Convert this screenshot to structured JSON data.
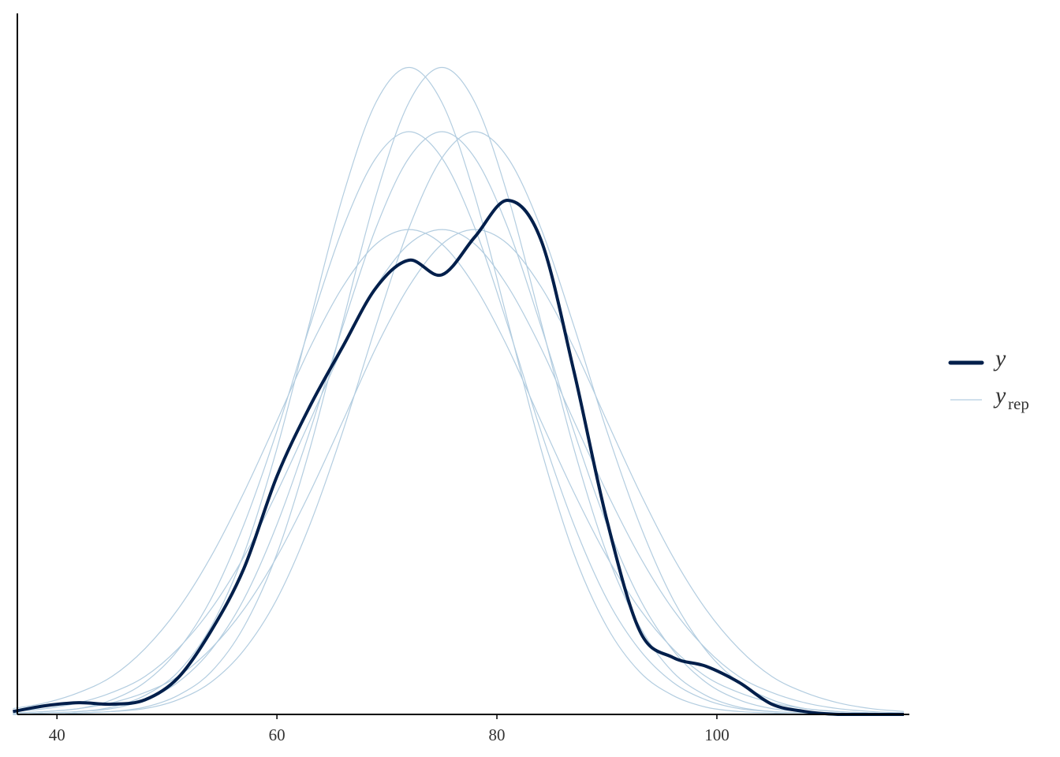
{
  "chart_data": {
    "type": "density-overlay",
    "x": [
      36,
      39,
      42,
      45,
      48,
      51,
      54,
      57,
      60,
      63,
      66,
      69,
      72,
      75,
      78,
      81,
      84,
      87,
      90,
      93,
      96,
      99,
      102,
      105,
      108,
      111,
      114,
      117
    ],
    "xlim": [
      36.4,
      117.5
    ],
    "xticks": [
      40,
      60,
      80,
      100
    ],
    "ylim": [
      0,
      0.048
    ],
    "series": [
      {
        "name": "y",
        "color": "#011f4b",
        "values": [
          0.0002,
          0.0006,
          0.0008,
          0.0007,
          0.001,
          0.0025,
          0.0057,
          0.01,
          0.0163,
          0.0211,
          0.0252,
          0.0292,
          0.0311,
          0.0301,
          0.0327,
          0.0352,
          0.0325,
          0.0235,
          0.0133,
          0.0057,
          0.0039,
          0.0033,
          0.0022,
          0.0007,
          0.0002,
          0,
          0,
          0
        ]
      }
    ],
    "replicates": {
      "name": "y",
      "subscript": "rep",
      "color": "#b3cde0",
      "series": [
        {
          "values": [
            0.0002,
            0.0004,
            0.0008,
            0.0015,
            0.0026,
            0.0045,
            0.0072,
            0.0108,
            0.0152,
            0.0201,
            0.0251,
            0.0293,
            0.0322,
            0.0332,
            0.0322,
            0.0293,
            0.0251,
            0.0201,
            0.0152,
            0.0108,
            0.0072,
            0.0045,
            0.0026,
            0.0015,
            0.0008,
            0.0004,
            0.0002,
            0.0001
          ]
        },
        {
          "values": [
            0.0004,
            0.0008,
            0.0015,
            0.0026,
            0.0045,
            0.0072,
            0.0108,
            0.0152,
            0.0201,
            0.0251,
            0.0293,
            0.0322,
            0.0332,
            0.0322,
            0.0293,
            0.0251,
            0.0201,
            0.0152,
            0.0108,
            0.0072,
            0.0045,
            0.0026,
            0.0015,
            0.0008,
            0.0004,
            0.0002,
            0.0001,
            0
          ]
        },
        {
          "values": [
            0.0001,
            0.0002,
            0.0004,
            0.0008,
            0.0015,
            0.0026,
            0.0045,
            0.0072,
            0.0108,
            0.0152,
            0.0201,
            0.0251,
            0.0293,
            0.0322,
            0.0332,
            0.0322,
            0.0293,
            0.0251,
            0.0201,
            0.0152,
            0.0108,
            0.0072,
            0.0045,
            0.0026,
            0.0015,
            0.0008,
            0.0004,
            0.0002
          ]
        },
        {
          "values": [
            0,
            0.0001,
            0.0002,
            0.0004,
            0.001,
            0.0022,
            0.0044,
            0.0079,
            0.013,
            0.0194,
            0.0266,
            0.0333,
            0.0381,
            0.0399,
            0.0381,
            0.0333,
            0.0266,
            0.0194,
            0.013,
            0.0079,
            0.0044,
            0.0022,
            0.001,
            0.0004,
            0.0002,
            0.0001,
            0,
            0
          ]
        },
        {
          "values": [
            0,
            0,
            0.0001,
            0.0002,
            0.0004,
            0.001,
            0.0022,
            0.0044,
            0.0079,
            0.013,
            0.0194,
            0.0266,
            0.0333,
            0.0381,
            0.0399,
            0.0381,
            0.0333,
            0.0266,
            0.0194,
            0.013,
            0.0079,
            0.0044,
            0.0022,
            0.001,
            0.0004,
            0.0002,
            0.0001,
            0
          ]
        },
        {
          "values": [
            0.0001,
            0.0002,
            0.0004,
            0.001,
            0.0022,
            0.0044,
            0.0079,
            0.013,
            0.0194,
            0.0266,
            0.0333,
            0.0381,
            0.0399,
            0.0381,
            0.0333,
            0.0266,
            0.0194,
            0.013,
            0.0079,
            0.0044,
            0.0022,
            0.001,
            0.0004,
            0.0002,
            0.0001,
            0,
            0,
            0
          ]
        },
        {
          "values": [
            0,
            0,
            0.0001,
            0.0002,
            0.0005,
            0.0013,
            0.0029,
            0.006,
            0.011,
            0.0182,
            0.0269,
            0.0355,
            0.0419,
            0.0443,
            0.0419,
            0.0355,
            0.0269,
            0.0182,
            0.011,
            0.006,
            0.0029,
            0.0013,
            0.0005,
            0.0002,
            0.0001,
            0,
            0,
            0
          ]
        },
        {
          "values": [
            0,
            0.0001,
            0.0002,
            0.0005,
            0.0013,
            0.0029,
            0.006,
            0.011,
            0.0182,
            0.0269,
            0.0355,
            0.0419,
            0.0443,
            0.0419,
            0.0355,
            0.0269,
            0.0182,
            0.011,
            0.006,
            0.0029,
            0.0013,
            0.0005,
            0.0002,
            0.0001,
            0,
            0,
            0,
            0
          ]
        }
      ]
    }
  }
}
